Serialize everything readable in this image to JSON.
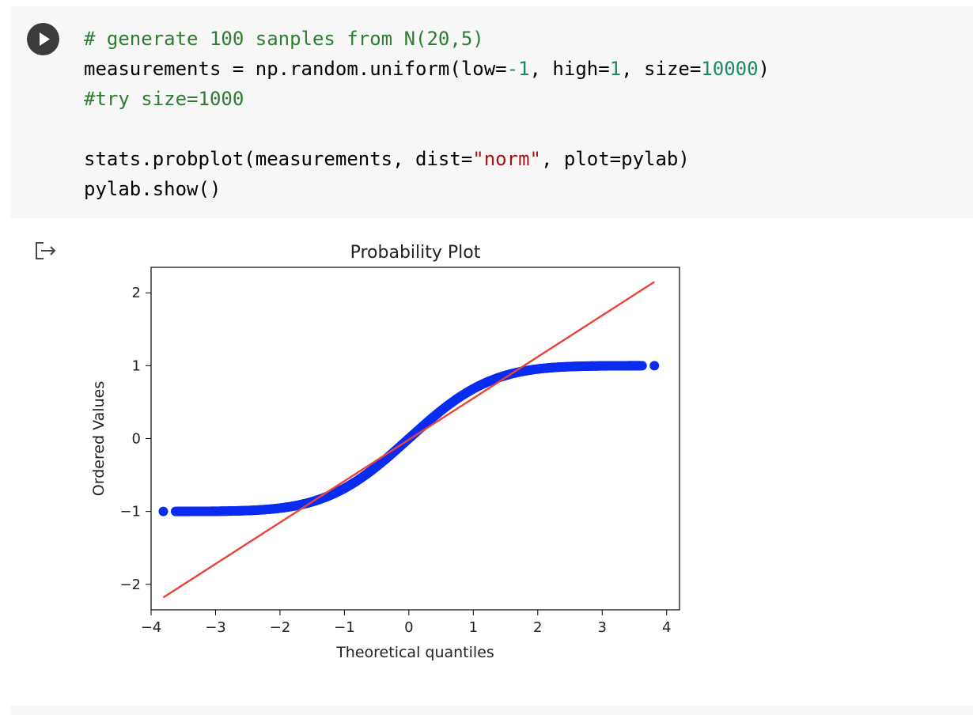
{
  "code_cell": {
    "lines": [
      [
        {
          "t": "# generate 100 sanples from N(20,5)",
          "c": "cm"
        }
      ],
      [
        {
          "t": "measurements = np.random.uniform(low=",
          "c": ""
        },
        {
          "t": "-1",
          "c": "num"
        },
        {
          "t": ", high=",
          "c": ""
        },
        {
          "t": "1",
          "c": "num"
        },
        {
          "t": ", size=",
          "c": ""
        },
        {
          "t": "10000",
          "c": "num"
        },
        {
          "t": ")",
          "c": ""
        }
      ],
      [
        {
          "t": "#try size=1000",
          "c": "cm"
        }
      ],
      [],
      [
        {
          "t": "stats.probplot(measurements, dist=",
          "c": ""
        },
        {
          "t": "\"norm\"",
          "c": "str"
        },
        {
          "t": ", plot=pylab)",
          "c": ""
        }
      ],
      [
        {
          "t": "pylab.show()",
          "c": ""
        }
      ]
    ]
  },
  "icons": {
    "run": "play-icon",
    "output": "output-arrow-icon"
  },
  "colors": {
    "points": "#0a2cf0",
    "fit_line": "#e8443a",
    "comment": "#2e7d32",
    "number": "#1b8a6b",
    "string": "#a31515"
  },
  "chart_data": {
    "type": "scatter",
    "title": "Probability Plot",
    "xlabel": "Theoretical quantiles",
    "ylabel": "Ordered Values",
    "xlim": [
      -4.0,
      4.2
    ],
    "ylim": [
      -2.35,
      2.35
    ],
    "xticks": [
      -4,
      -3,
      -2,
      -1,
      0,
      1,
      2,
      3,
      4
    ],
    "yticks": [
      -2,
      -1,
      0,
      1,
      2
    ],
    "xtick_labels": [
      "−4",
      "−3",
      "−2",
      "−1",
      "0",
      "1",
      "2",
      "3",
      "4"
    ],
    "ytick_labels": [
      "−2",
      "−1",
      "0",
      "1",
      "2"
    ],
    "series": [
      {
        "kind": "points",
        "description_distribution": "uniform(-1,1) quantiles vs normal quantiles",
        "x_range": [
          -3.81,
          3.81
        ],
        "n": 10000
      },
      {
        "kind": "line",
        "x": [
          -3.81,
          3.81
        ],
        "y": [
          -2.18,
          2.15
        ]
      }
    ],
    "grid": false
  }
}
